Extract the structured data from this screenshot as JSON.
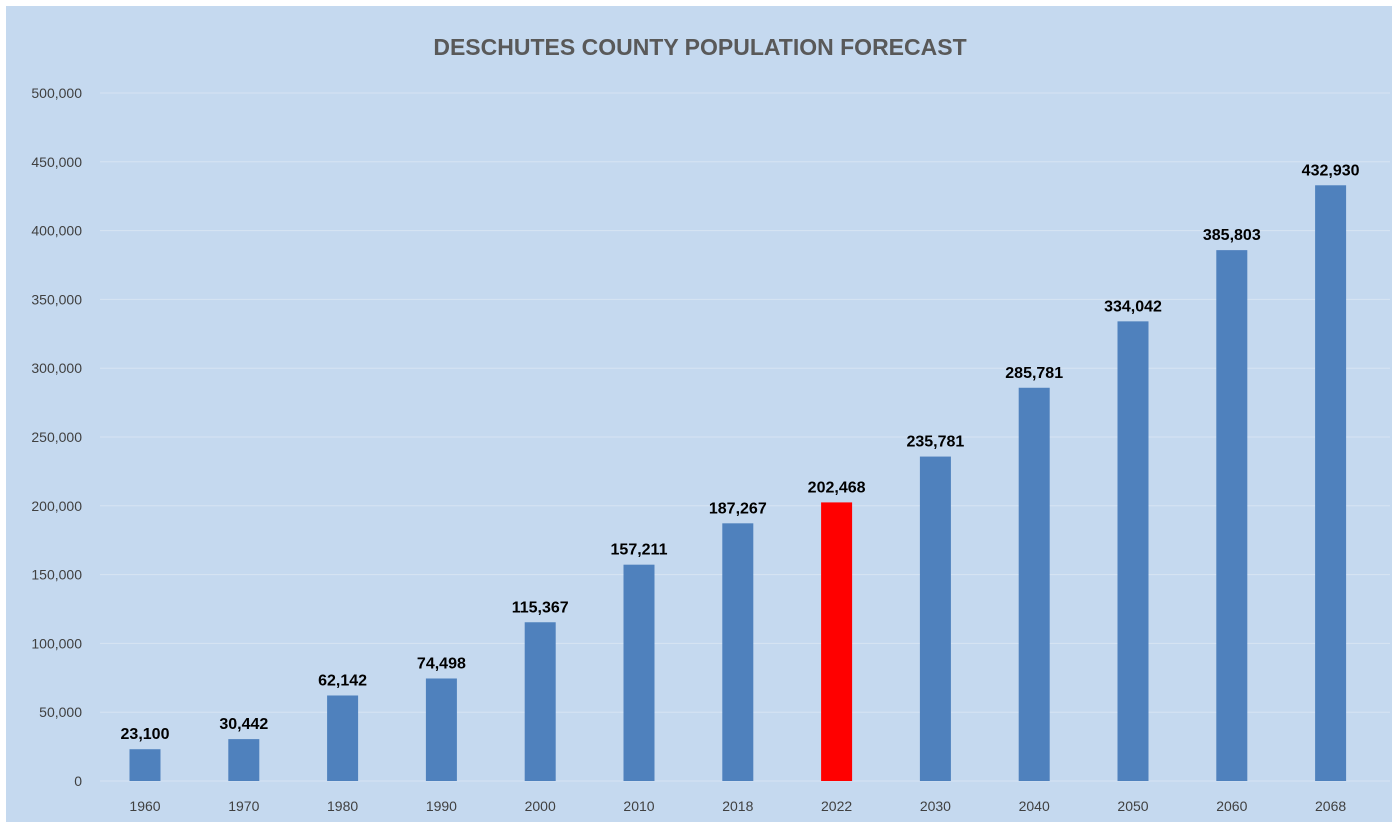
{
  "chart_data": {
    "type": "bar",
    "title": "DESCHUTES COUNTY POPULATION FORECAST",
    "xlabel": "",
    "ylabel": "",
    "ylim": [
      0,
      500000
    ],
    "yticks": [
      0,
      50000,
      100000,
      150000,
      200000,
      250000,
      300000,
      350000,
      400000,
      450000,
      500000
    ],
    "ytick_labels": [
      "0",
      "50,000",
      "100,000",
      "150,000",
      "200,000",
      "250,000",
      "300,000",
      "350,000",
      "400,000",
      "450,000",
      "500,000"
    ],
    "categories": [
      "1960",
      "1970",
      "1980",
      "1990",
      "2000",
      "2010",
      "2018",
      "2022",
      "2030",
      "2040",
      "2050",
      "2060",
      "2068"
    ],
    "values": [
      23100,
      30442,
      62142,
      74498,
      115367,
      157211,
      187267,
      202468,
      235781,
      285781,
      334042,
      385803,
      432930
    ],
    "data_labels": [
      "23,100",
      "30,442",
      "62,142",
      "74,498",
      "115,367",
      "157,211",
      "187,267",
      "202,468",
      "235,781",
      "285,781",
      "334,042",
      "385,803",
      "432,930"
    ],
    "grid": true,
    "legend": "none",
    "bar_color": "#4f81bd",
    "highlight": {
      "category": "2022",
      "bar_color": "#ff0000",
      "label_color": "#ff0000"
    },
    "background_color": "#c5d9ef"
  }
}
